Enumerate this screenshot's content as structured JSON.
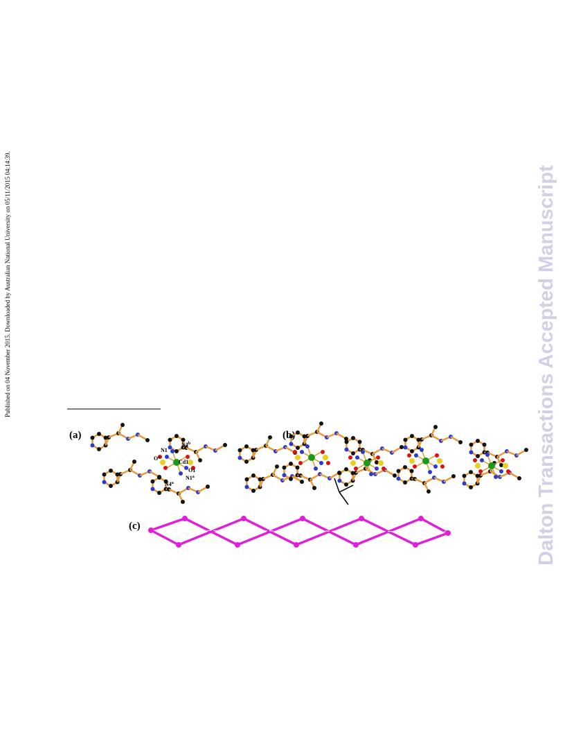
{
  "side_note": "Published on 04 November 2015. Downloaded by Australian National University on 05/11/2015 04:14:39.",
  "watermark": "Dalton Transactions Accepted Manuscript",
  "figure": {
    "panels": [
      {
        "label": "(a)"
      },
      {
        "label": "(b)"
      },
      {
        "label": "(c)"
      }
    ],
    "atom_labels": [
      {
        "text": "N1",
        "sup": ""
      },
      {
        "text": "N4",
        "sup": "b"
      },
      {
        "text": "Cd1",
        "sup": ""
      },
      {
        "text": "O1",
        "sup": ""
      },
      {
        "text": "O",
        "sup": "a"
      },
      {
        "text": "N4",
        "sup": "a"
      },
      {
        "text": "N1",
        "sup": "a"
      }
    ]
  }
}
